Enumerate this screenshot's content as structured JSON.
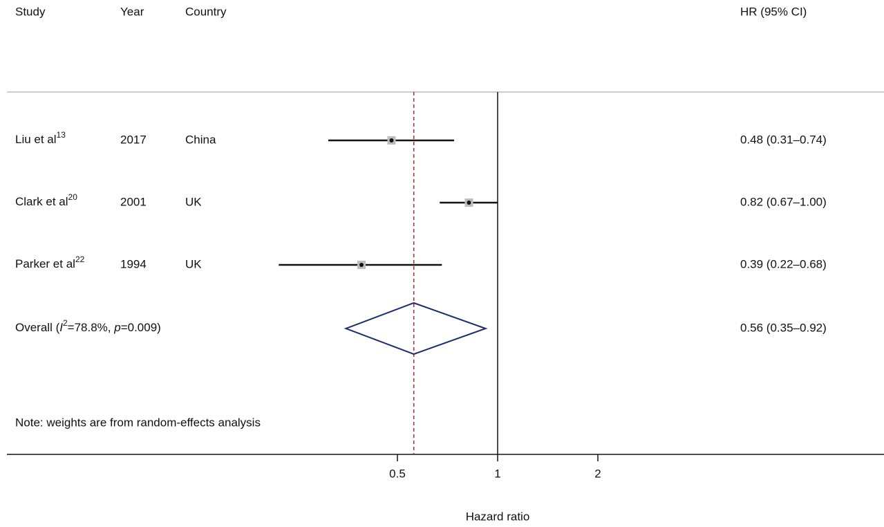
{
  "chart_data": {
    "type": "forest",
    "columns": [
      "Study",
      "Year",
      "Country"
    ],
    "ci_header": "HR (95% CI)",
    "xlabel": "Hazard ratio",
    "note": "Note: weights are from random-effects analysis",
    "log_scale": true,
    "xlim": [
      0.25,
      4
    ],
    "xticks": [
      0.5,
      1,
      2
    ],
    "reference_line": 1,
    "studies": [
      {
        "name": "Liu et al",
        "ref": "13",
        "year": 2017,
        "country": "China",
        "hr": 0.48,
        "lo": 0.31,
        "hi": 0.74,
        "label": "0.48 (0.31–0.74)"
      },
      {
        "name": "Clark et al",
        "ref": "20",
        "year": 2001,
        "country": "UK",
        "hr": 0.82,
        "lo": 0.67,
        "hi": 1.0,
        "label": "0.82 (0.67–1.00)"
      },
      {
        "name": "Parker et al",
        "ref": "22",
        "year": 1994,
        "country": "UK",
        "hr": 0.39,
        "lo": 0.22,
        "hi": 0.68,
        "label": "0.39 (0.22–0.68)"
      }
    ],
    "overall": {
      "label_parts": [
        "Overall (",
        "I",
        "2",
        "=78.8%, ",
        "p",
        "=0.009)"
      ],
      "hr": 0.56,
      "lo": 0.35,
      "hi": 0.92,
      "label": "0.56 (0.35–0.92)",
      "color": "#1f2a6e",
      "line_color": "#b22222"
    }
  }
}
